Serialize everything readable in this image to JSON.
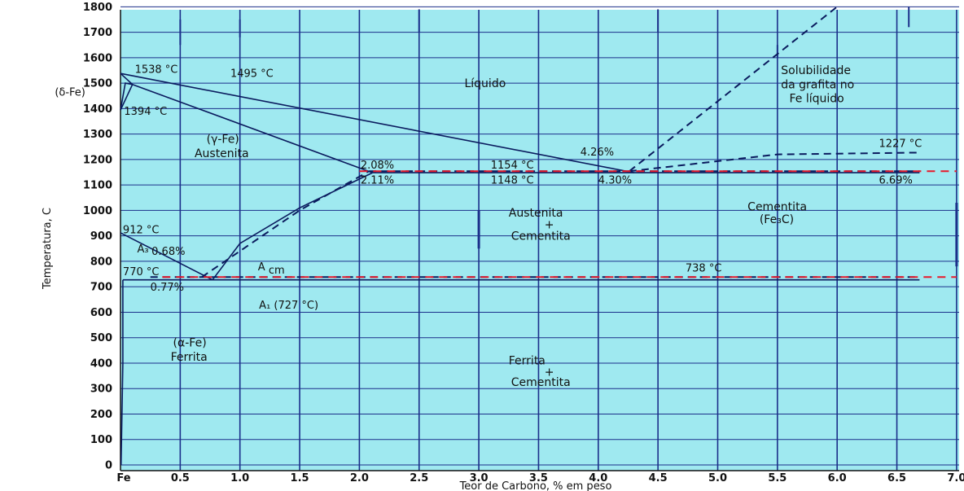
{
  "chart_data": {
    "type": "line",
    "xlabel": "Teor de Carbono, % em peso",
    "ylabel": "Temperatura, C",
    "xlim": [
      0,
      7.0
    ],
    "ylim": [
      0,
      1800
    ],
    "grid": true,
    "x_tick_labels": [
      "Fe",
      "0.5",
      "1.0",
      "1.5",
      "2.0",
      "2.5",
      "3.0",
      "3.5",
      "4.0",
      "4.5",
      "5.0",
      "5.5",
      "6.0",
      "6.5",
      "7.0"
    ],
    "y_tick_labels": [
      "0",
      "100",
      "200",
      "300",
      "400",
      "500",
      "600",
      "700",
      "800",
      "900",
      "1000",
      "1100",
      "1200",
      "1300",
      "1400",
      "1500",
      "1600",
      "1700",
      "1800"
    ],
    "series": [
      {
        "style": "solid",
        "points": [
          [
            0,
            1538
          ],
          [
            4.3,
            1148
          ]
        ]
      },
      {
        "style": "solid",
        "points": [
          [
            0.1,
            1495
          ],
          [
            2.11,
            1148
          ]
        ]
      },
      {
        "style": "solid",
        "points": [
          [
            0,
            1538
          ],
          [
            0.1,
            1495
          ]
        ]
      },
      {
        "style": "solid",
        "points": [
          [
            0,
            1394
          ],
          [
            0.1,
            1495
          ]
        ]
      },
      {
        "style": "solid",
        "points": [
          [
            0,
            1394
          ],
          [
            0.04,
            1500
          ],
          [
            0.1,
            1495
          ]
        ]
      },
      {
        "style": "solid",
        "points": [
          [
            0,
            912
          ],
          [
            0.77,
            727
          ]
        ]
      },
      {
        "style": "solid",
        "points": [
          [
            0.77,
            727
          ],
          [
            1.0,
            870
          ],
          [
            1.5,
            1010
          ],
          [
            2.11,
            1148
          ]
        ]
      },
      {
        "style": "solid",
        "points": [
          [
            0.02,
            727
          ],
          [
            0.02,
            400
          ],
          [
            0.005,
            0
          ]
        ]
      },
      {
        "style": "solid",
        "points": [
          [
            0.02,
            727
          ],
          [
            6.69,
            727
          ]
        ]
      },
      {
        "style": "solid",
        "points": [
          [
            2.11,
            1148
          ],
          [
            6.69,
            1148
          ]
        ]
      },
      {
        "style": "dashed",
        "points": [
          [
            4.26,
            1154
          ],
          [
            6.0,
            1800
          ]
        ]
      },
      {
        "style": "dashed",
        "points": [
          [
            0.68,
            738
          ],
          [
            1.5,
            1000
          ],
          [
            2.08,
            1154
          ]
        ]
      },
      {
        "style": "dashed",
        "points": [
          [
            0.25,
            738
          ],
          [
            6.69,
            738
          ]
        ]
      },
      {
        "style": "dashed",
        "points": [
          [
            2.08,
            1154
          ],
          [
            6.69,
            1154
          ]
        ]
      },
      {
        "style": "dashed",
        "points": [
          [
            4.26,
            1154
          ],
          [
            5.5,
            1220
          ],
          [
            6.69,
            1227
          ]
        ]
      }
    ],
    "red_dashed_lines": [
      {
        "points": [
          [
            0.35,
            738
          ],
          [
            7.0,
            738
          ]
        ]
      },
      {
        "points": [
          [
            2.0,
            1154
          ],
          [
            7.0,
            1154
          ]
        ]
      }
    ],
    "annotations": [
      {
        "text": "1538 °C",
        "x": 0.12,
        "y": 1540
      },
      {
        "text": "1495 °C",
        "x": 0.92,
        "y": 1525
      },
      {
        "text": "(δ-Fe)",
        "x": -0.55,
        "y": 1450
      },
      {
        "text": "1394 °C",
        "x": 0.03,
        "y": 1375
      },
      {
        "text": "Líquido",
        "x": 2.88,
        "y": 1485
      },
      {
        "text": "Solubilidade",
        "x": 5.53,
        "y": 1535
      },
      {
        "text": "da grafita no",
        "x": 5.53,
        "y": 1480
      },
      {
        "text": "Fe líquido",
        "x": 5.6,
        "y": 1425
      },
      {
        "text": "(γ-Fe)",
        "x": 0.72,
        "y": 1265
      },
      {
        "text": "Austenita",
        "x": 0.62,
        "y": 1210
      },
      {
        "text": "2.08%",
        "x": 2.01,
        "y": 1165
      },
      {
        "text": "2.11%",
        "x": 2.01,
        "y": 1105
      },
      {
        "text": "1154 °C",
        "x": 3.1,
        "y": 1165
      },
      {
        "text": "1148 °C",
        "x": 3.1,
        "y": 1105
      },
      {
        "text": "4.26%",
        "x": 3.85,
        "y": 1215
      },
      {
        "text": "4.30%",
        "x": 4.0,
        "y": 1105
      },
      {
        "text": "1227 °C",
        "x": 6.35,
        "y": 1250
      },
      {
        "text": "6.69%",
        "x": 6.35,
        "y": 1105
      },
      {
        "text": "Austenita",
        "x": 3.25,
        "y": 975
      },
      {
        "text": "+",
        "x": 3.55,
        "y": 930
      },
      {
        "text": "Cementita",
        "x": 3.27,
        "y": 885
      },
      {
        "text": "Cementita",
        "x": 5.25,
        "y": 1000
      },
      {
        "text": "(Fe₃C)",
        "x": 5.35,
        "y": 950
      },
      {
        "text": "912 °C",
        "x": 0.02,
        "y": 910
      },
      {
        "text": "A₃",
        "x": 0.14,
        "y": 835
      },
      {
        "text": "0.68%",
        "x": 0.26,
        "y": 825
      },
      {
        "text": "A",
        "x": 1.15,
        "y": 765
      },
      {
        "text": "cm",
        "x": 1.24,
        "y": 752
      },
      {
        "text": "770 °C",
        "x": 0.02,
        "y": 745
      },
      {
        "text": "0.77%",
        "x": 0.25,
        "y": 685
      },
      {
        "text": "738 °C",
        "x": 4.73,
        "y": 760
      },
      {
        "text": "A₁ (727 °C)",
        "x": 1.16,
        "y": 615
      },
      {
        "text": "(α-Fe)",
        "x": 0.44,
        "y": 465
      },
      {
        "text": "Ferrita",
        "x": 0.42,
        "y": 410
      },
      {
        "text": "Ferrita",
        "x": 3.25,
        "y": 395
      },
      {
        "text": "+",
        "x": 3.55,
        "y": 350
      },
      {
        "text": "Cementita",
        "x": 3.27,
        "y": 310
      }
    ]
  }
}
